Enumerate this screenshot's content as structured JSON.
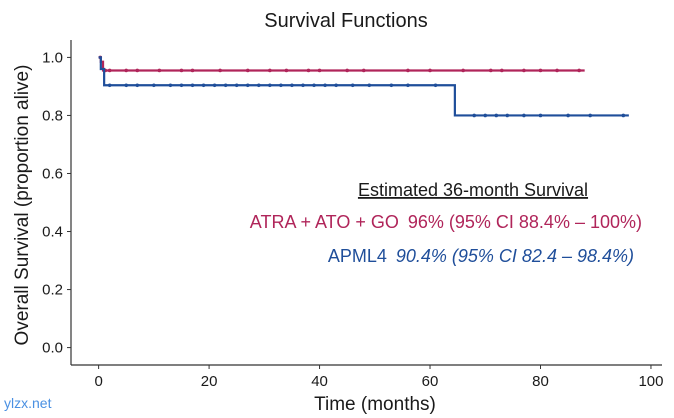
{
  "watermark": "ylzx.net",
  "chart_data": {
    "type": "line",
    "title": "Survival Functions",
    "xlabel": "Time (months)",
    "ylabel": "Overall Survival (proportion alive)",
    "xlim": [
      -5,
      102
    ],
    "ylim": [
      -0.06,
      1.06
    ],
    "xticks": [
      0,
      20,
      40,
      60,
      80,
      100
    ],
    "yticks": [
      0.0,
      0.2,
      0.4,
      0.6,
      0.8,
      1.0
    ],
    "xtick_labels": [
      "0",
      "20",
      "40",
      "60",
      "80",
      "100"
    ],
    "ytick_labels": [
      "0.0",
      "0.2",
      "0.4",
      "0.6",
      "0.8",
      "1.0"
    ],
    "series": [
      {
        "name": "ATRA + ATO + GO",
        "color": "#b0255a",
        "steps": [
          [
            0,
            1.0
          ],
          [
            0.4,
            0.985
          ],
          [
            0.8,
            0.955
          ],
          [
            88,
            0.955
          ]
        ],
        "censor_times": [
          0.3,
          1.2,
          2,
          5,
          7,
          11,
          15,
          17,
          22,
          27,
          31,
          34,
          38,
          40,
          45,
          48,
          56,
          60,
          66,
          71,
          73,
          77,
          80,
          83,
          87
        ]
      },
      {
        "name": "APML4",
        "color": "#1f4e9a",
        "steps": [
          [
            0,
            1.0
          ],
          [
            0.4,
            0.96
          ],
          [
            1,
            0.904
          ],
          [
            64.5,
            0.904
          ],
          [
            64.5,
            0.8
          ],
          [
            96,
            0.8
          ]
        ],
        "censor_times": [
          2,
          5,
          7,
          10,
          13,
          15,
          17,
          19,
          21,
          23,
          25,
          27,
          29,
          31,
          33,
          35,
          37,
          39,
          41,
          43,
          46,
          49,
          53,
          56,
          61,
          68,
          70,
          72,
          74,
          77,
          80,
          85,
          89,
          95
        ]
      }
    ],
    "annotations": {
      "header": "Estimated 36-month Survival",
      "rows": [
        {
          "label": "ATRA + ATO + GO",
          "estimate": "96% (95% CI 88.4% – 100%)",
          "color": "#b0255a",
          "italic": false
        },
        {
          "label": "APML4",
          "estimate": "90.4% (95% CI 82.4 – 98.4%)",
          "color": "#1f4e9a",
          "italic": true
        }
      ]
    }
  }
}
